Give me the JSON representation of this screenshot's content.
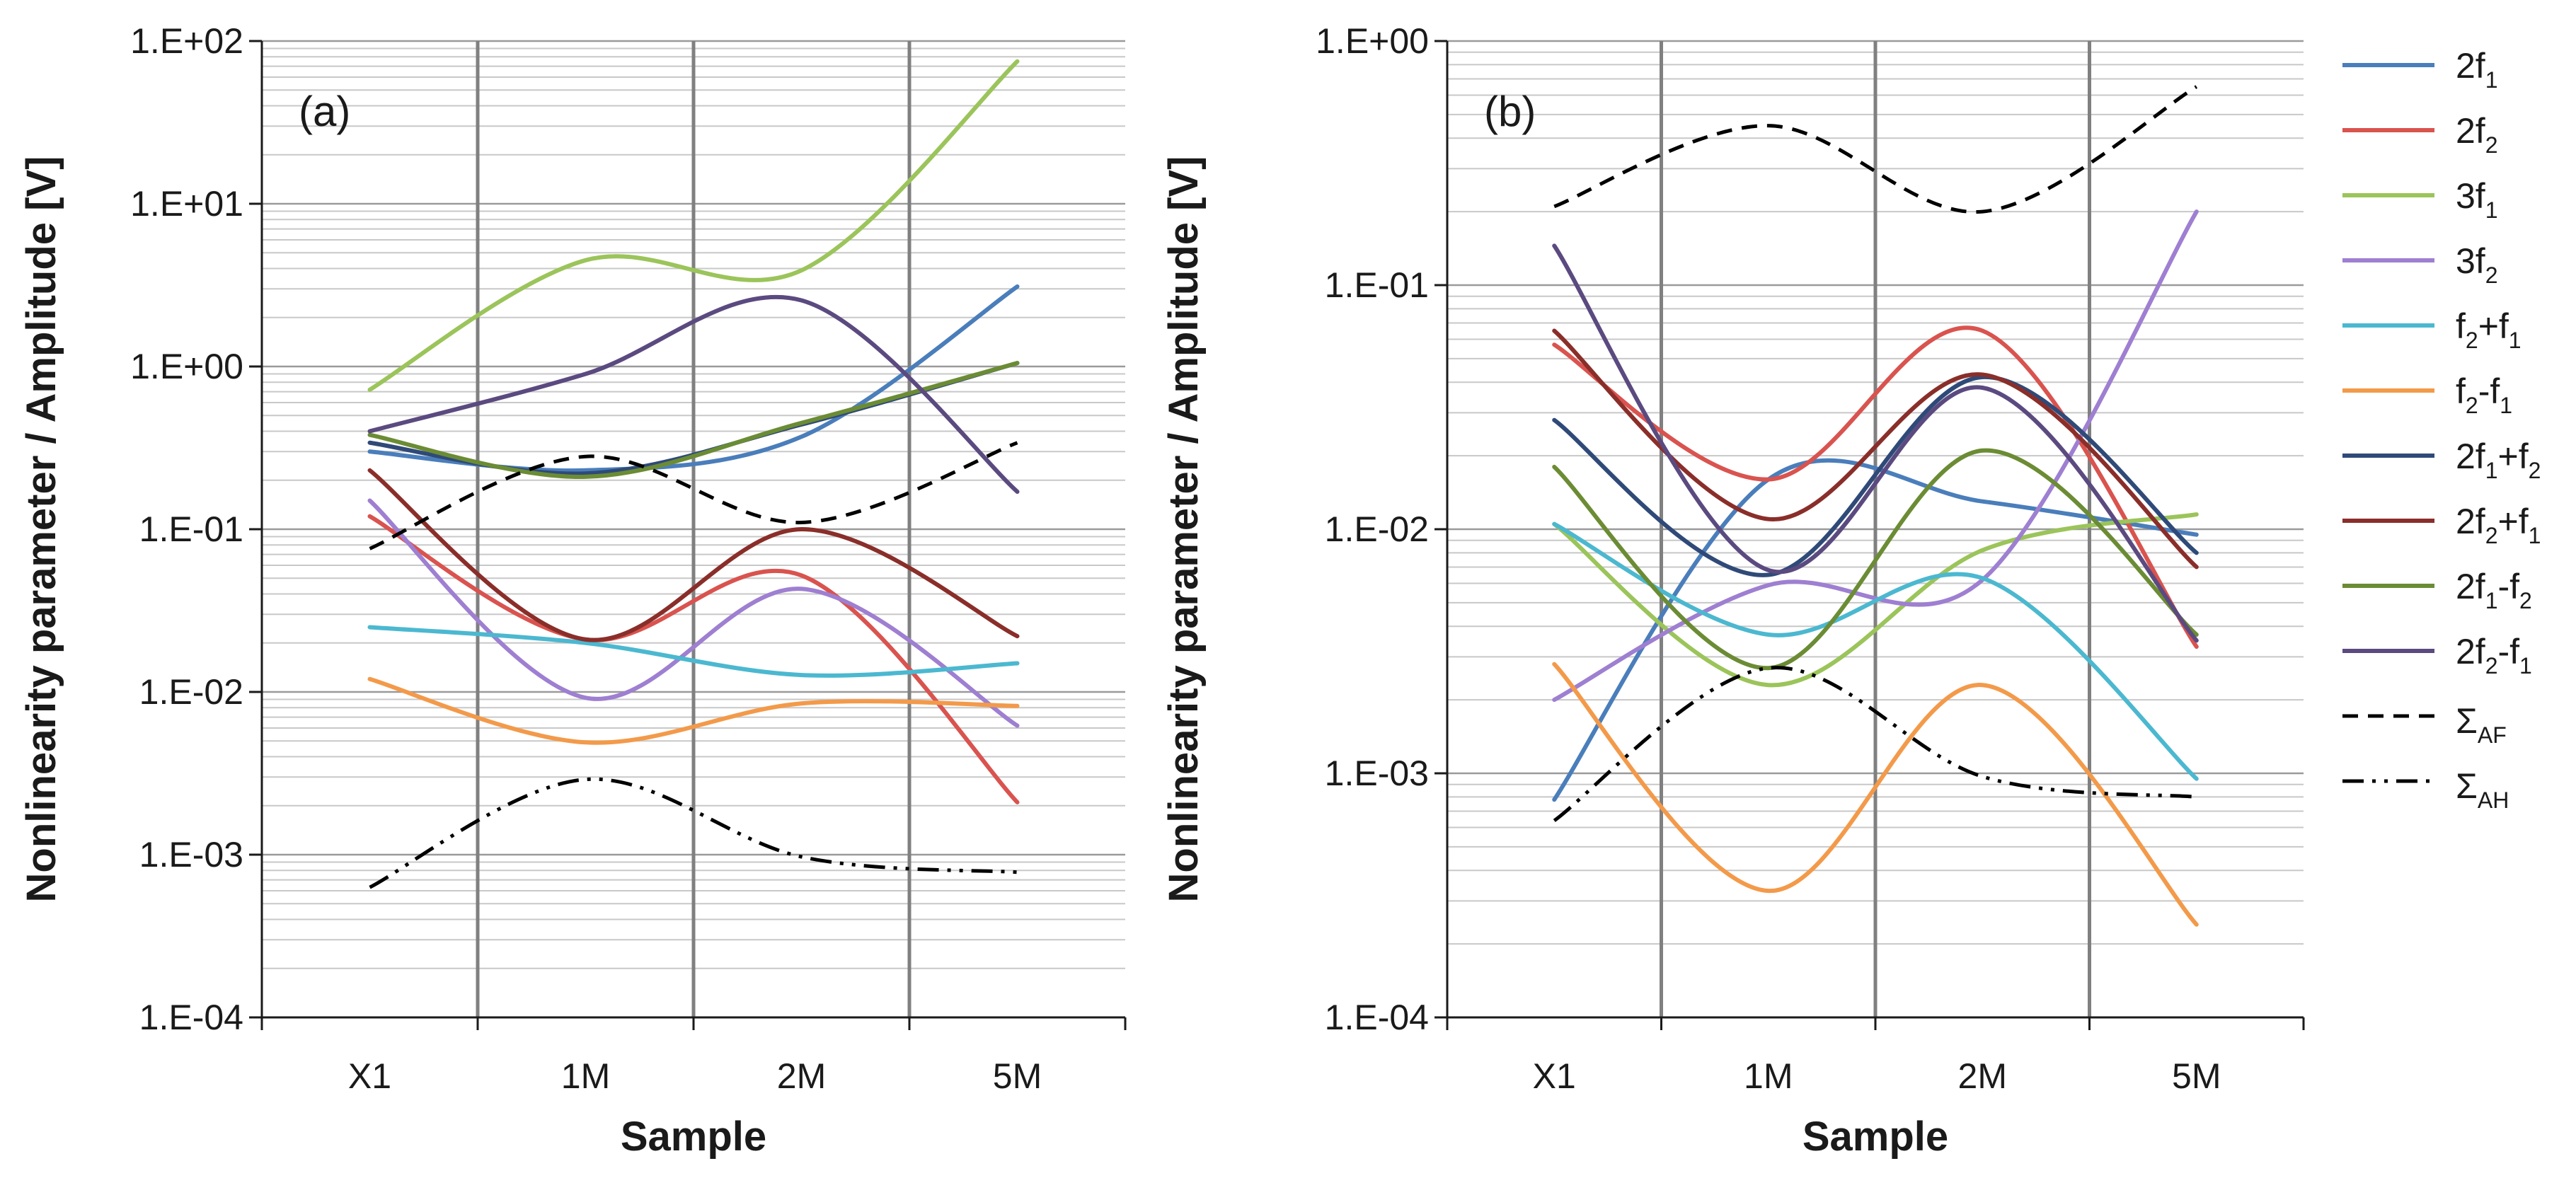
{
  "chart_data": [
    {
      "type": "line",
      "panel_label": "(a)",
      "xlabel": "Sample",
      "ylabel": "Nonlinearity parameter / Amplitude [V]",
      "yscale": "log",
      "ylim": [
        0.0001,
        100
      ],
      "ytick_labels": [
        "1.E-04",
        "1.E-03",
        "1.E-02",
        "1.E-01",
        "1.E+00",
        "1.E+01",
        "1.E+02"
      ],
      "categories": [
        "X1",
        "1M",
        "2M",
        "5M"
      ],
      "grid": "on",
      "series": [
        {
          "name": "2f1",
          "values": [
            0.3,
            0.23,
            0.37,
            3.1
          ]
        },
        {
          "name": "2f2",
          "values": [
            0.12,
            0.021,
            0.052,
            0.0021
          ]
        },
        {
          "name": "3f1",
          "values": [
            0.72,
            4.5,
            3.9,
            75
          ]
        },
        {
          "name": "3f2",
          "values": [
            0.15,
            0.0092,
            0.043,
            0.0062
          ]
        },
        {
          "name": "f2+f1",
          "values": [
            0.025,
            0.02,
            0.0127,
            0.015
          ]
        },
        {
          "name": "f2-f1",
          "values": [
            0.012,
            0.0049,
            0.0085,
            0.0082
          ]
        },
        {
          "name": "2f1+f2",
          "values": [
            0.34,
            0.22,
            0.44,
            1.05
          ]
        },
        {
          "name": "2f2+f1",
          "values": [
            0.23,
            0.021,
            0.1,
            0.022
          ]
        },
        {
          "name": "2f1-f2",
          "values": [
            0.38,
            0.21,
            0.45,
            1.05
          ]
        },
        {
          "name": "2f2-f1",
          "values": [
            0.4,
            0.9,
            2.55,
            0.17
          ]
        },
        {
          "name": "ΣAF",
          "values": [
            0.076,
            0.28,
            0.11,
            0.34
          ]
        },
        {
          "name": "ΣAH",
          "values": [
            0.00063,
            0.0029,
            0.00097,
            0.00078
          ]
        }
      ]
    },
    {
      "type": "line",
      "panel_label": "(b)",
      "xlabel": "Sample",
      "ylabel": "Nonlinearity parameter / Amplitude [V]",
      "yscale": "log",
      "ylim": [
        0.0001,
        1
      ],
      "ytick_labels": [
        "1.E-04",
        "1.E-03",
        "1.E-02",
        "1.E-01",
        "1.E+00"
      ],
      "categories": [
        "X1",
        "1M",
        "2M",
        "5M"
      ],
      "grid": "on",
      "series": [
        {
          "name": "2f1",
          "values": [
            0.00078,
            0.016,
            0.013,
            0.0095
          ]
        },
        {
          "name": "2f2",
          "values": [
            0.057,
            0.016,
            0.065,
            0.0033
          ]
        },
        {
          "name": "3f1",
          "values": [
            0.0105,
            0.0023,
            0.0082,
            0.0115
          ]
        },
        {
          "name": "3f2",
          "values": [
            0.002,
            0.0059,
            0.0062,
            0.2
          ]
        },
        {
          "name": "f2+f1",
          "values": [
            0.0105,
            0.0037,
            0.0063,
            0.00095
          ]
        },
        {
          "name": "f2-f1",
          "values": [
            0.0028,
            0.00033,
            0.0023,
            0.00024
          ]
        },
        {
          "name": "2f1+f2",
          "values": [
            0.028,
            0.0065,
            0.042,
            0.008
          ]
        },
        {
          "name": "2f2+f1",
          "values": [
            0.065,
            0.011,
            0.043,
            0.007
          ]
        },
        {
          "name": "2f1-f2",
          "values": [
            0.018,
            0.0027,
            0.021,
            0.0037
          ]
        },
        {
          "name": "2f2-f1",
          "values": [
            0.145,
            0.0068,
            0.038,
            0.0035
          ]
        },
        {
          "name": "ΣAF",
          "values": [
            0.21,
            0.45,
            0.2,
            0.65
          ]
        },
        {
          "name": "ΣAH",
          "values": [
            0.00064,
            0.0027,
            0.00097,
            0.0008
          ]
        }
      ]
    }
  ],
  "legend": {
    "position": "right",
    "entries": [
      {
        "base": "2f",
        "sub": "1",
        "rest": "",
        "sub2": "",
        "color": "#4a7ebb",
        "dash": "solid"
      },
      {
        "base": "2f",
        "sub": "2",
        "rest": "",
        "sub2": "",
        "color": "#d9534f",
        "dash": "solid"
      },
      {
        "base": "3f",
        "sub": "1",
        "rest": "",
        "sub2": "",
        "color": "#9bc45a",
        "dash": "solid"
      },
      {
        "base": "3f",
        "sub": "2",
        "rest": "",
        "sub2": "",
        "color": "#9e7fd1",
        "dash": "solid"
      },
      {
        "base": "f",
        "sub": "2",
        "rest": "+f",
        "sub2": "1",
        "color": "#4bb8d0",
        "dash": "solid"
      },
      {
        "base": "f",
        "sub": "2",
        "rest": "-f",
        "sub2": "1",
        "color": "#f39a4a",
        "dash": "solid"
      },
      {
        "base": "2f",
        "sub": "1",
        "rest": "+f",
        "sub2": "2",
        "color": "#2f4a78",
        "dash": "solid"
      },
      {
        "base": "2f",
        "sub": "2",
        "rest": "+f",
        "sub2": "1",
        "color": "#8a2e2a",
        "dash": "solid"
      },
      {
        "base": "2f",
        "sub": "1",
        "rest": "-f",
        "sub2": "2",
        "color": "#6b8c34",
        "dash": "solid"
      },
      {
        "base": "2f",
        "sub": "2",
        "rest": "-f",
        "sub2": "1",
        "color": "#5b4a80",
        "dash": "solid"
      },
      {
        "base": "Σ",
        "sub": "AF",
        "rest": "",
        "sub2": "",
        "color": "#000000",
        "dash": "dash"
      },
      {
        "base": "Σ",
        "sub": "AH",
        "rest": "",
        "sub2": "",
        "color": "#000000",
        "dash": "dashdot"
      }
    ]
  }
}
